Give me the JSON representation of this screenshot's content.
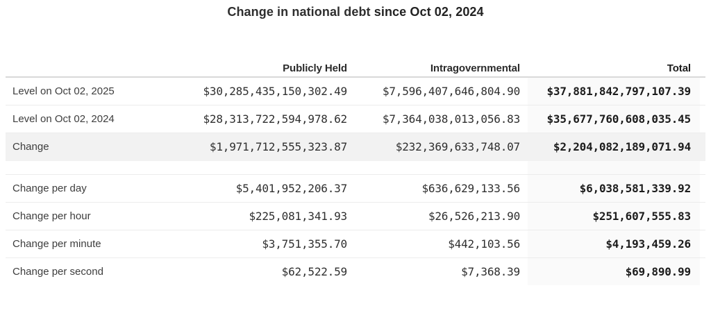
{
  "title": {
    "prefix": "Change in national debt ",
    "bold_suffix": "since Oct 02, 2024"
  },
  "colors": {
    "highlight_row_bg": "#f2f2f2",
    "total_column_bg": "#fafafa",
    "header_border": "#d9d9d9",
    "row_border": "#ececec",
    "text": "#333333"
  },
  "table": {
    "headers": {
      "label": "",
      "publicly_held": "Publicly Held",
      "intragovernmental": "Intragovernmental",
      "total": "Total"
    },
    "sections": [
      {
        "name": "levels",
        "rows": [
          {
            "label": "Level on Oct 02, 2025",
            "publicly_held": "$30,285,435,150,302.49",
            "intragovernmental": "$7,596,407,646,804.90",
            "total": "$37,881,842,797,107.39",
            "highlight": false
          },
          {
            "label": "Level on Oct 02, 2024",
            "publicly_held": "$28,313,722,594,978.62",
            "intragovernmental": "$7,364,038,013,056.83",
            "total": "$35,677,760,608,035.45",
            "highlight": false
          },
          {
            "label": "Change",
            "publicly_held": "$1,971,712,555,323.87",
            "intragovernmental": "$232,369,633,748.07",
            "total": "$2,204,082,189,071.94",
            "highlight": true
          }
        ]
      },
      {
        "name": "rates",
        "rows": [
          {
            "label": "Change per day",
            "publicly_held": "$5,401,952,206.37",
            "intragovernmental": "$636,629,133.56",
            "total": "$6,038,581,339.92",
            "highlight": false
          },
          {
            "label": "Change per hour",
            "publicly_held": "$225,081,341.93",
            "intragovernmental": "$26,526,213.90",
            "total": "$251,607,555.83",
            "highlight": false
          },
          {
            "label": "Change per minute",
            "publicly_held": "$3,751,355.70",
            "intragovernmental": "$442,103.56",
            "total": "$4,193,459.26",
            "highlight": false
          },
          {
            "label": "Change per second",
            "publicly_held": "$62,522.59",
            "intragovernmental": "$7,368.39",
            "total": "$69,890.99",
            "highlight": false
          }
        ]
      }
    ]
  }
}
